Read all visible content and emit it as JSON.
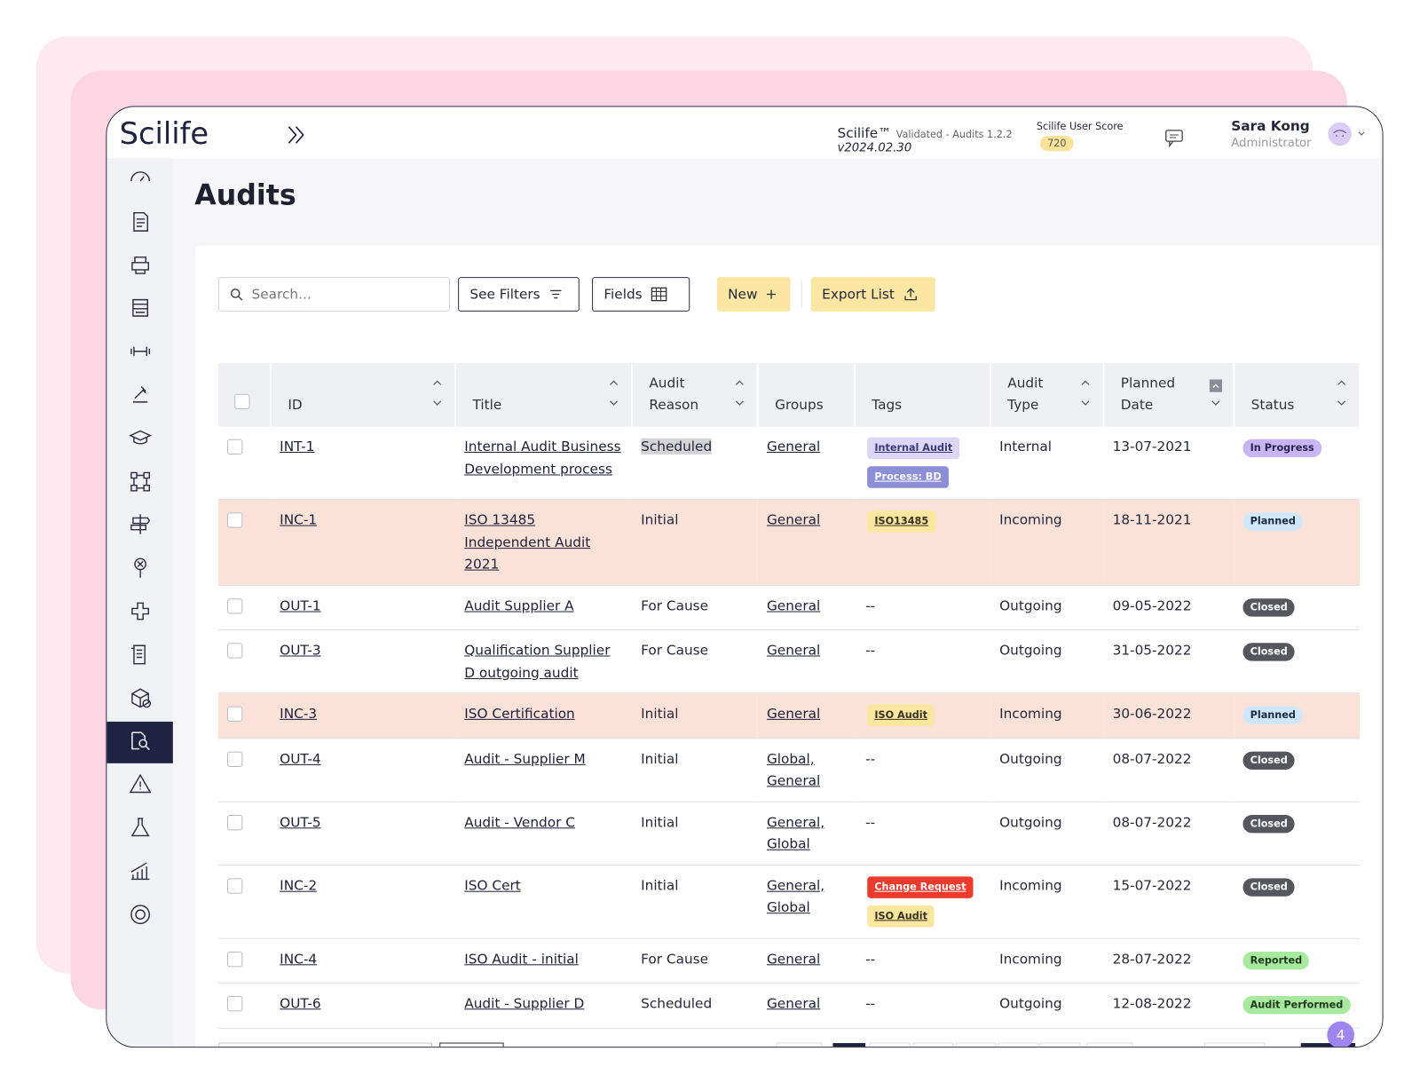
{
  "header": {
    "logo": "Scilife",
    "product": "Scilife™",
    "validation": "Validated - Audits 1.2.2",
    "version": "v2024.02.30",
    "score_label": "Scilife User Score",
    "score": 720,
    "user_name": "Sara Kong",
    "user_role": "Administrator"
  },
  "page_title": "Audits",
  "toolbar": {
    "search_placeholder": "Search...",
    "filters": "See Filters",
    "fields": "Fields",
    "new": "New",
    "export": "Export List"
  },
  "table": {
    "columns": [
      "ID",
      "Title",
      "Audit Reason",
      "Groups",
      "Tags",
      "Audit Type",
      "Planned Date",
      "Status"
    ],
    "rows": [
      {
        "id": "INT-1",
        "title": "Internal Audit Business Development process",
        "reason": "Scheduled",
        "reason_highlight": true,
        "groups": "General",
        "tags": [
          {
            "label": "Internal Audit",
            "color": "#ddd6f7",
            "text_color": "#3b3a7a"
          },
          {
            "label": "Process: BD",
            "color": "#8c8fd8",
            "text_color": "#ffffff"
          }
        ],
        "type": "Internal",
        "date": "13-07-2021",
        "status": {
          "label": "In Progress",
          "color": "#c8b6f4",
          "text_color": "#2a2350"
        }
      },
      {
        "id": "INC-1",
        "title": "ISO 13485 Independent Audit 2021",
        "reason": "Initial",
        "groups": "General",
        "tags": [
          {
            "label": "ISO13485",
            "color": "#fbe7a0",
            "text_color": "#3a3320"
          }
        ],
        "type": "Incoming",
        "date": "18-11-2021",
        "status": {
          "label": "Planned",
          "color": "#cfe7fa",
          "text_color": "#1d2a40"
        },
        "highlight": true
      },
      {
        "id": "OUT-1",
        "title": "Audit Supplier A",
        "reason": "For Cause",
        "groups": "General",
        "tags": "--",
        "type": "Outgoing",
        "date": "09-05-2022",
        "status": {
          "label": "Closed",
          "color": "#55575c",
          "text_color": "#ffffff"
        }
      },
      {
        "id": "OUT-3",
        "title": "Qualification Supplier D outgoing audit",
        "reason": "For Cause",
        "groups": "General",
        "tags": "--",
        "type": "Outgoing",
        "date": "31-05-2022",
        "status": {
          "label": "Closed",
          "color": "#55575c",
          "text_color": "#ffffff"
        }
      },
      {
        "id": "INC-3",
        "title": "ISO Certification",
        "reason": "Initial",
        "groups": "General",
        "tags": [
          {
            "label": "ISO Audit",
            "color": "#fbe7a0",
            "text_color": "#3a3320"
          }
        ],
        "type": "Incoming",
        "date": "30-06-2022",
        "status": {
          "label": "Planned",
          "color": "#cfe7fa",
          "text_color": "#1d2a40"
        },
        "highlight": true
      },
      {
        "id": "OUT-4",
        "title": "Audit - Supplier M",
        "reason": "Initial",
        "groups": "Global, General",
        "tags": "--",
        "type": "Outgoing",
        "date": "08-07-2022",
        "status": {
          "label": "Closed",
          "color": "#55575c",
          "text_color": "#ffffff"
        }
      },
      {
        "id": "OUT-5",
        "title": "Audit - Vendor C",
        "reason": "Initial",
        "groups": "General, Global",
        "tags": "--",
        "type": "Outgoing",
        "date": "08-07-2022",
        "status": {
          "label": "Closed",
          "color": "#55575c",
          "text_color": "#ffffff"
        }
      },
      {
        "id": "INC-2",
        "title": "ISO Cert",
        "reason": "Initial",
        "groups": "General, Global",
        "tags": [
          {
            "label": "Change Request",
            "color": "#ea3b2e",
            "text_color": "#ffffff"
          },
          {
            "label": "ISO Audit",
            "color": "#fbe7a0",
            "text_color": "#3a3320"
          }
        ],
        "type": "Incoming",
        "date": "15-07-2022",
        "status": {
          "label": "Closed",
          "color": "#55575c",
          "text_color": "#ffffff"
        }
      },
      {
        "id": "INC-4",
        "title": "ISO Audit - initial",
        "reason": "For Cause",
        "groups": "General",
        "tags": "--",
        "type": "Incoming",
        "date": "28-07-2022",
        "status": {
          "label": "Reported",
          "color": "#a8e9a0",
          "text_color": "#1e3b1c"
        }
      },
      {
        "id": "OUT-6",
        "title": "Audit - Supplier D",
        "reason": "Scheduled",
        "groups": "General",
        "tags": "--",
        "type": "Outgoing",
        "date": "12-08-2022",
        "status": {
          "label": "Audit Performed",
          "color": "#a8e9a0",
          "text_color": "#1e3b1c"
        }
      }
    ]
  },
  "help_badge": 4
}
